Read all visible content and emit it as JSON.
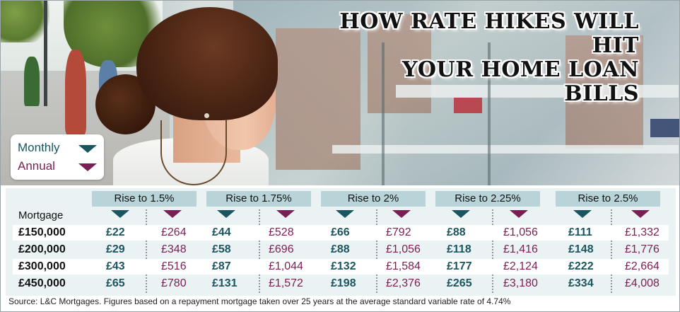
{
  "headline": {
    "line1": "HOW RATE HIKES WILL HIT",
    "line2": "YOUR HOME LOAN BILLS"
  },
  "legend": {
    "monthly": "Monthly",
    "annual": "Annual",
    "colors": {
      "monthly": "#1b5560",
      "annual": "#7a1f54"
    }
  },
  "table": {
    "mortgage_label": "Mortgage",
    "rises": [
      "Rise to 1.5%",
      "Rise to 1.75%",
      "Rise to 2%",
      "Rise to 2.25%",
      "Rise to 2.5%"
    ],
    "rows": [
      {
        "mortgage": "£150,000",
        "values": [
          [
            "£22",
            "£264"
          ],
          [
            "£44",
            "£528"
          ],
          [
            "£66",
            "£792"
          ],
          [
            "£88",
            "£1,056"
          ],
          [
            "£111",
            "£1,332"
          ]
        ]
      },
      {
        "mortgage": "£200,000",
        "values": [
          [
            "£29",
            "£348"
          ],
          [
            "£58",
            "£696"
          ],
          [
            "£88",
            "£1,056"
          ],
          [
            "£118",
            "£1,416"
          ],
          [
            "£148",
            "£1,776"
          ]
        ]
      },
      {
        "mortgage": "£300,000",
        "values": [
          [
            "£43",
            "£516"
          ],
          [
            "£87",
            "£1,044"
          ],
          [
            "£132",
            "£1,584"
          ],
          [
            "£177",
            "£2,124"
          ],
          [
            "£222",
            "£2,664"
          ]
        ]
      },
      {
        "mortgage": "£450,000",
        "values": [
          [
            "£65",
            "£780"
          ],
          [
            "£131",
            "£1,572"
          ],
          [
            "£198",
            "£2,376"
          ],
          [
            "£265",
            "£3,180"
          ],
          [
            "£334",
            "£4,008"
          ]
        ]
      }
    ]
  },
  "source": "Source: L&C Mortgages. Figures based on a repayment mortgage taken over 25 years at the average standard variable rate of 4.74%",
  "icons": [
    "monthly-triangle-icon",
    "annual-triangle-icon"
  ]
}
